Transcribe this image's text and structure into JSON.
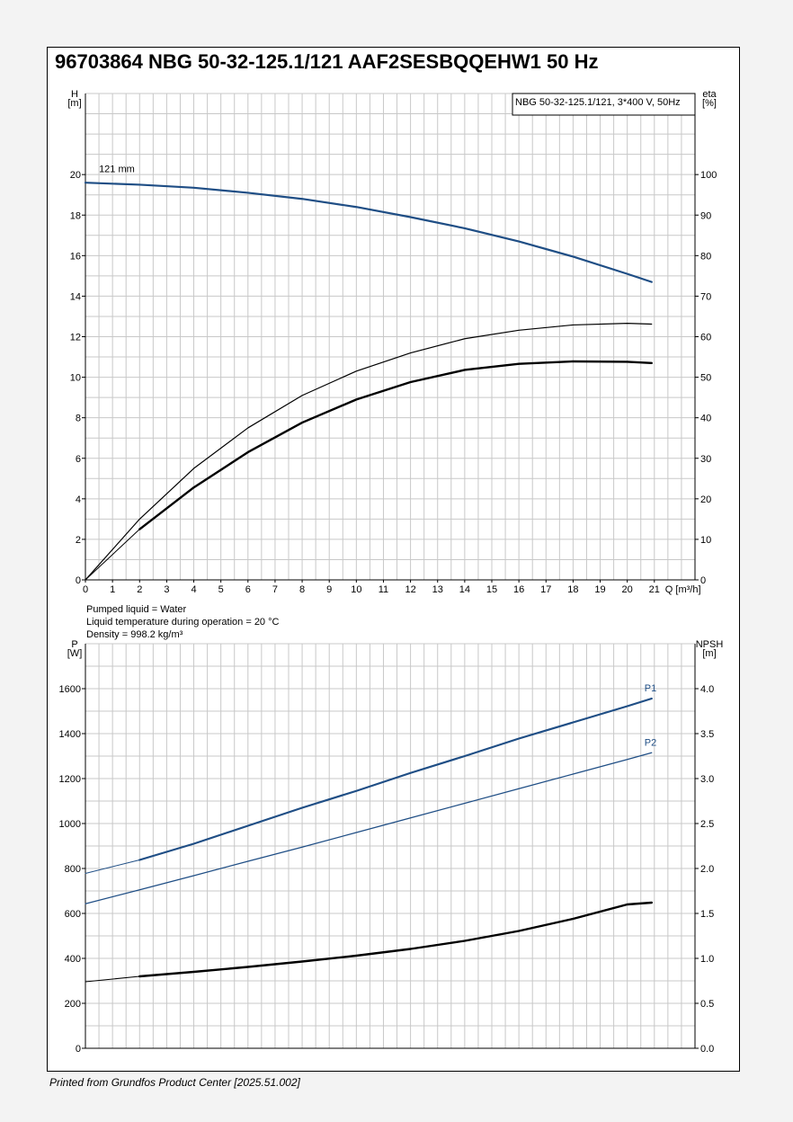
{
  "page": {
    "title": "96703864 NBG 50-32-125.1/121 AAF2SESBQQEHW1 50 Hz",
    "footer": "Printed from Grundfos Product Center [2025.51.002]"
  },
  "colors": {
    "curve_blue": "#1f4e85",
    "curve_black": "#000000",
    "grid": "#c8c8c8",
    "frame": "#000000"
  },
  "chart_data": [
    {
      "type": "line",
      "name": "head-efficiency",
      "legend_box": "NBG 50-32-125.1/121, 3*400 V, 50Hz",
      "legend_placement": "top-right",
      "xlabel": "Q [m³/h]",
      "ylabel_left": [
        "H",
        "[m]"
      ],
      "ylabel_right": [
        "eta",
        "[%]"
      ],
      "xlim": [
        0,
        22.5
      ],
      "ylim_left": [
        0,
        24
      ],
      "ylim_right": [
        0,
        120
      ],
      "x_ticks": [
        "0",
        "1",
        "2",
        "3",
        "4",
        "5",
        "6",
        "7",
        "8",
        "9",
        "10",
        "11",
        "12",
        "13",
        "14",
        "15",
        "16",
        "17",
        "18",
        "19",
        "20",
        "21"
      ],
      "y_ticks_left": [
        "0",
        "2",
        "4",
        "6",
        "8",
        "10",
        "12",
        "14",
        "16",
        "18",
        "20"
      ],
      "y_ticks_right": [
        "0",
        "10",
        "20",
        "30",
        "40",
        "50",
        "60",
        "70",
        "80",
        "90",
        "100"
      ],
      "grid": true,
      "annotations": [
        {
          "text": "121 mm",
          "x": 0.5,
          "y": 20.3
        }
      ],
      "notes": [
        "Pumped liquid = Water",
        "Liquid temperature during operation = 20 °C",
        "Density = 998.2 kg/m³"
      ],
      "series": [
        {
          "key": "head",
          "axis": "left",
          "color": "#1f4e85",
          "width": 2.2,
          "thin_until": 0.0,
          "x": [
            0,
            2,
            4,
            6,
            8,
            10,
            12,
            14,
            16,
            18,
            20,
            20.9
          ],
          "y": [
            19.6,
            19.5,
            19.35,
            19.1,
            18.8,
            18.4,
            17.9,
            17.35,
            16.7,
            15.95,
            15.1,
            14.7
          ]
        },
        {
          "key": "head-extension",
          "axis": "left",
          "color": "#1f4e85",
          "width": 1,
          "x": [
            0,
            2
          ],
          "y": [
            19.6,
            19.5
          ]
        },
        {
          "key": "eta-thin",
          "axis": "right",
          "color": "#000000",
          "width": 1.2,
          "x": [
            0,
            2,
            4,
            6,
            8,
            10,
            12,
            14,
            16,
            18,
            20,
            20.9
          ],
          "y": [
            0,
            15,
            27.5,
            37.5,
            45.5,
            51.5,
            56,
            59.5,
            61.6,
            62.9,
            63.3,
            63.1
          ]
        },
        {
          "key": "eta-bold",
          "axis": "right",
          "color": "#000000",
          "width": 2.4,
          "x": [
            2,
            4,
            6,
            8,
            10,
            12,
            14,
            16,
            18,
            20,
            20.9
          ],
          "y": [
            12.5,
            22.8,
            31.5,
            38.8,
            44.5,
            48.8,
            51.8,
            53.3,
            53.9,
            53.8,
            53.5
          ]
        },
        {
          "key": "eta-extension",
          "axis": "right",
          "color": "#000000",
          "width": 1,
          "x": [
            0,
            2
          ],
          "y": [
            0,
            12.5
          ]
        }
      ]
    },
    {
      "type": "line",
      "name": "power-npsh",
      "ylabel_left": [
        "P",
        "[W]"
      ],
      "ylabel_right": [
        "NPSH",
        "[m]"
      ],
      "xlim": [
        0,
        22.5
      ],
      "ylim_left": [
        0,
        1800
      ],
      "ylim_right": [
        0,
        4.5
      ],
      "y_ticks_left": [
        "0",
        "200",
        "400",
        "600",
        "800",
        "1000",
        "1200",
        "1400",
        "1600"
      ],
      "y_ticks_right": [
        "0.0",
        "0.5",
        "1.0",
        "1.5",
        "2.0",
        "2.5",
        "3.0",
        "3.5",
        "4.0"
      ],
      "grid": true,
      "series": [
        {
          "name": "P1",
          "key": "p1",
          "axis": "left",
          "color": "#1f4e85",
          "width": 2.2,
          "x": [
            2,
            4,
            6,
            8,
            10,
            12,
            14,
            16,
            18,
            20,
            20.9
          ],
          "y": [
            838,
            910,
            990,
            1070,
            1145,
            1225,
            1300,
            1378,
            1450,
            1522,
            1556
          ]
        },
        {
          "key": "p1-extension",
          "axis": "left",
          "color": "#1f4e85",
          "width": 1,
          "x": [
            0,
            2
          ],
          "y": [
            778,
            838
          ]
        },
        {
          "name": "P2",
          "key": "p2",
          "axis": "left",
          "color": "#1f4e85",
          "width": 1.2,
          "x": [
            0,
            2,
            4,
            6,
            8,
            10,
            12,
            14,
            16,
            18,
            20,
            20.9
          ],
          "y": [
            643,
            705,
            768,
            832,
            895,
            960,
            1025,
            1090,
            1155,
            1220,
            1285,
            1315
          ]
        },
        {
          "key": "npsh",
          "axis": "right",
          "color": "#000000",
          "width": 2.4,
          "x": [
            2,
            4,
            6,
            8,
            10,
            12,
            14,
            16,
            18,
            20,
            20.9
          ],
          "y": [
            0.8,
            0.85,
            0.905,
            0.965,
            1.03,
            1.105,
            1.195,
            1.305,
            1.44,
            1.6,
            1.62
          ]
        },
        {
          "key": "npsh-extension",
          "axis": "right",
          "color": "#000000",
          "width": 1,
          "x": [
            0,
            2
          ],
          "y": [
            0.74,
            0.8
          ]
        }
      ]
    }
  ]
}
